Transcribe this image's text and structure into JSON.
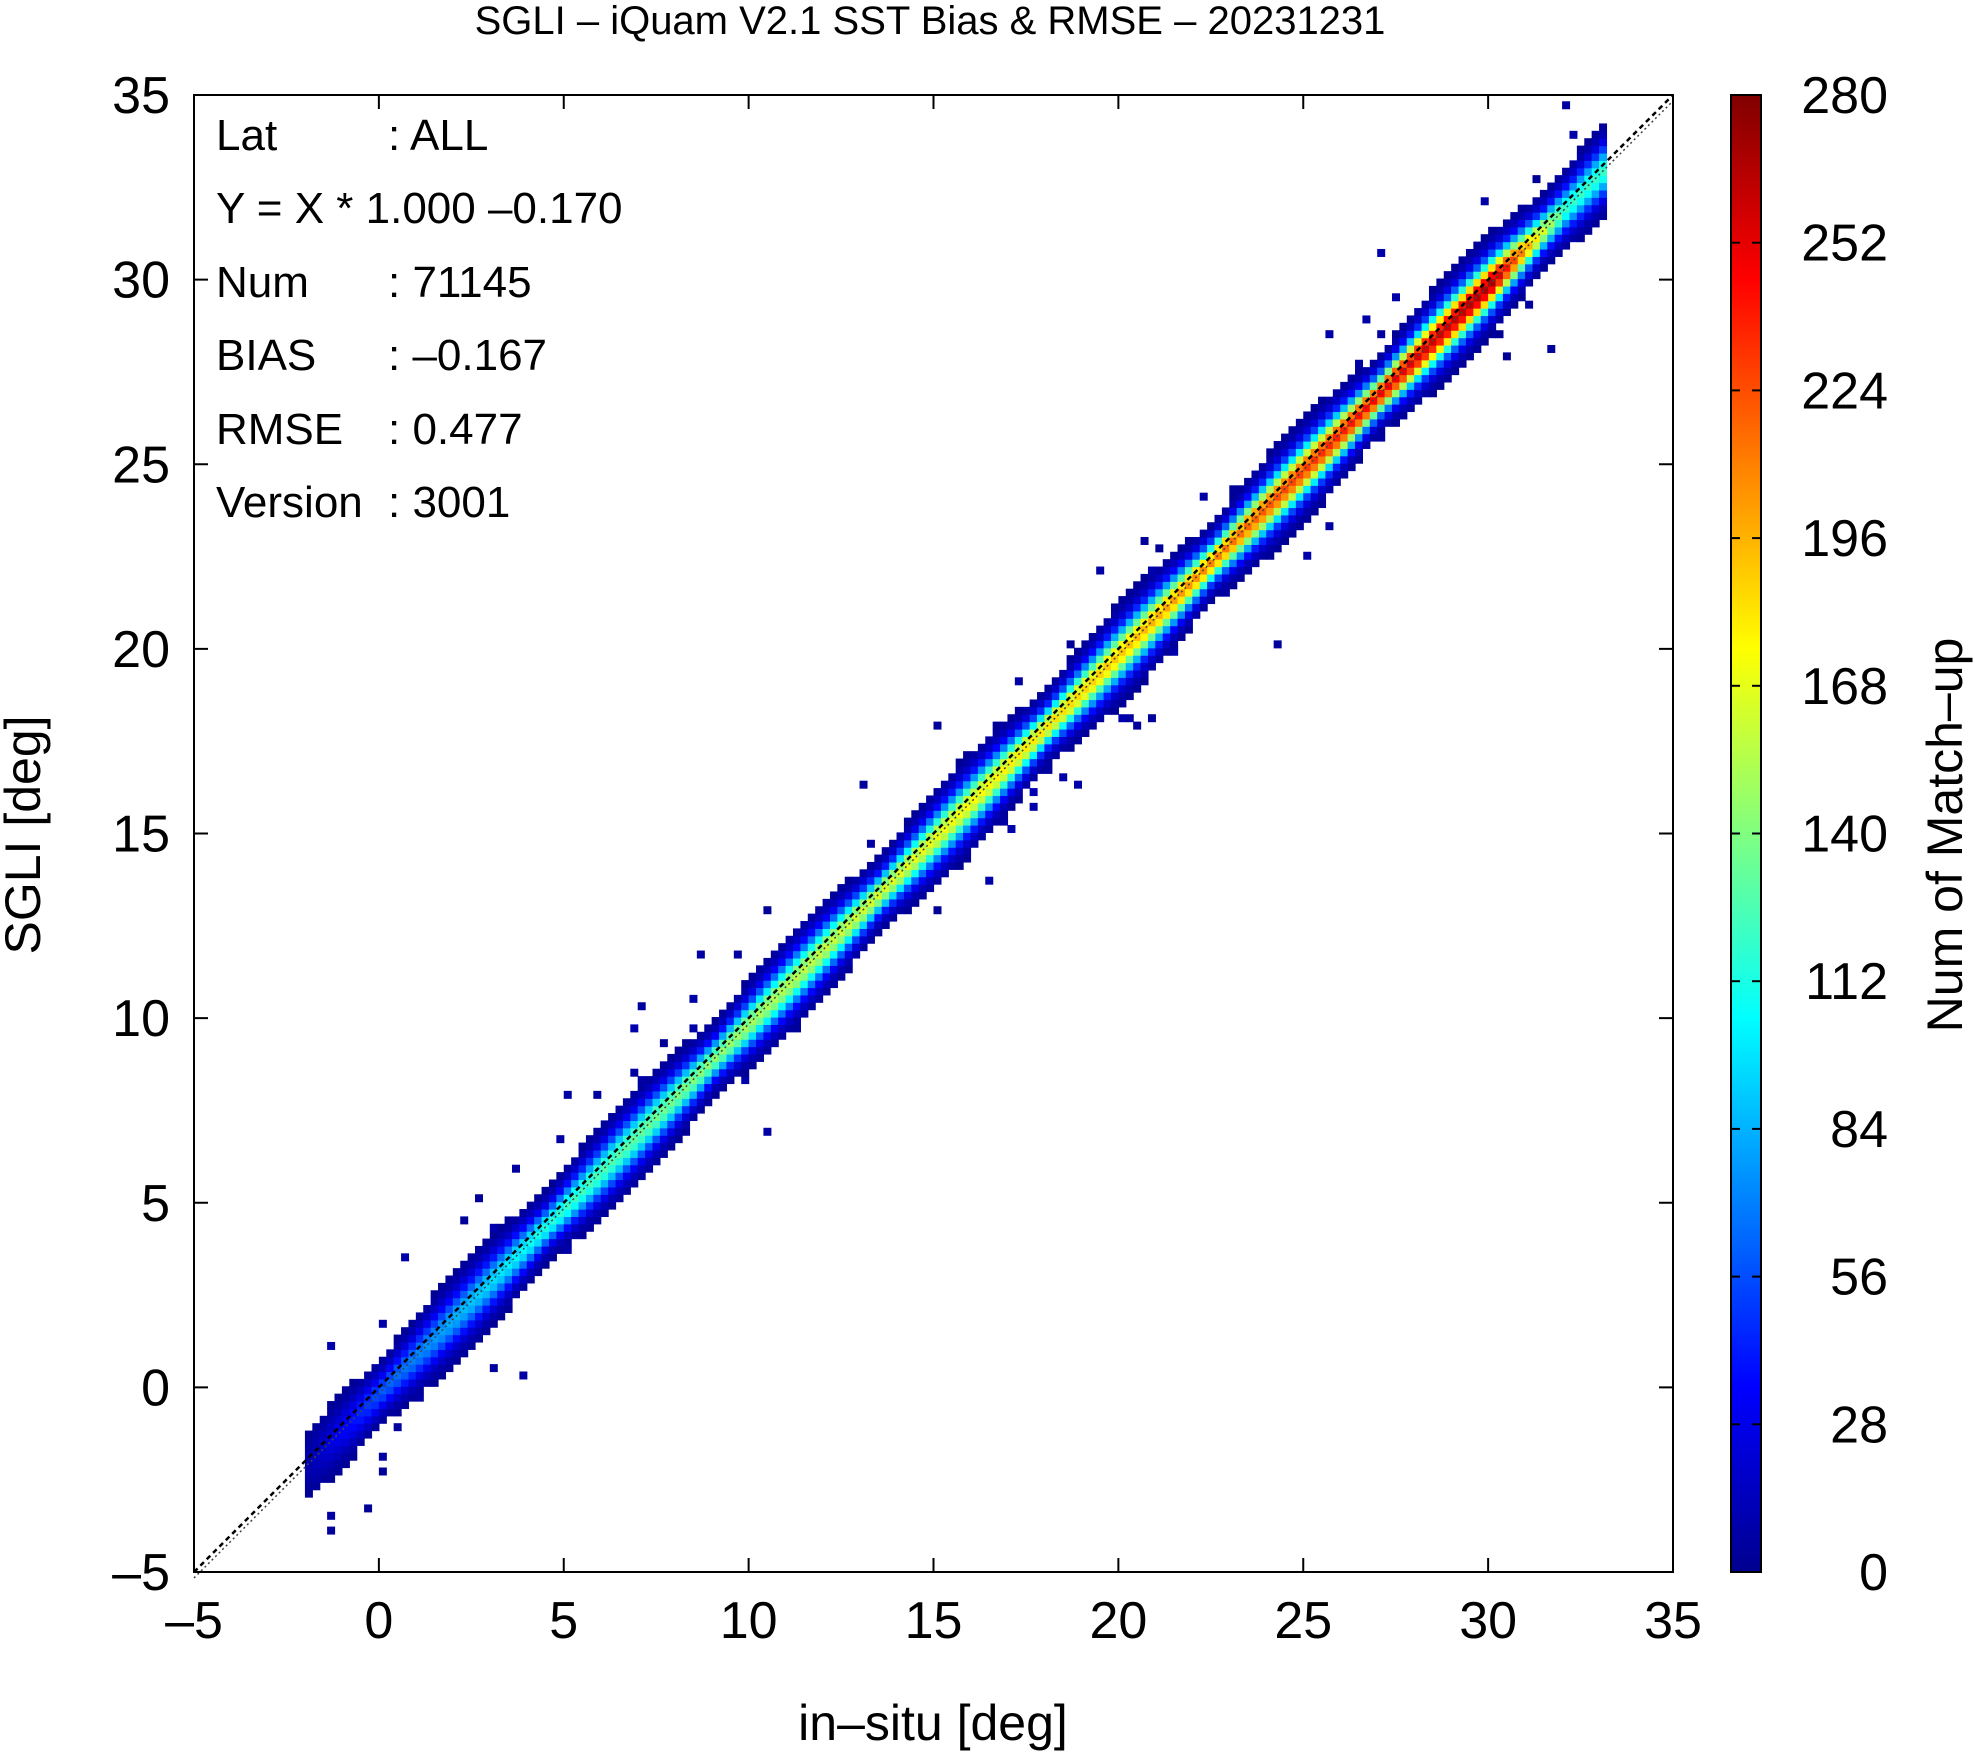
{
  "chart_data": {
    "type": "heatmap",
    "title": "SGLI – iQuam V2.1 SST Bias & RMSE  – 20231231",
    "xlabel": "in–situ [deg]",
    "ylabel": "SGLI [deg]",
    "xlim": [
      -5,
      35
    ],
    "ylim": [
      -5,
      35
    ],
    "xticks": [
      "–5",
      "0",
      "5",
      "10",
      "15",
      "20",
      "25",
      "30",
      "35"
    ],
    "yticks": [
      "–5",
      "0",
      "5",
      "10",
      "15",
      "20",
      "25",
      "30",
      "35"
    ],
    "grid": false,
    "colorbar": {
      "label": "Num of Match–up",
      "min": 0,
      "max": 280,
      "ticks": [
        "0",
        "28",
        "56",
        "84",
        "112",
        "140",
        "168",
        "196",
        "224",
        "252",
        "280"
      ],
      "colormap": [
        "#00008f",
        "#0000ff",
        "#0080ff",
        "#00ffff",
        "#80ff80",
        "#ffff00",
        "#ff8000",
        "#ff0000",
        "#800000"
      ]
    },
    "reference_line": {
      "slope": 1,
      "intercept": 0,
      "style": "dashed"
    },
    "fit_line": {
      "slope": 1.0,
      "intercept": -0.17
    },
    "density_ridge": {
      "x": [
        -2,
        0,
        5,
        10,
        15,
        20,
        25,
        30,
        32
      ],
      "peak_count": [
        10,
        60,
        120,
        150,
        170,
        190,
        230,
        270,
        120
      ]
    },
    "stats": [
      {
        "label": "Lat",
        "value": ": ALL"
      },
      {
        "label": "Y = X * 1.000 –0.170",
        "value": ""
      },
      {
        "label": "Num",
        "value": ": 71145"
      },
      {
        "label": "BIAS",
        "value": ": –0.167"
      },
      {
        "label": "RMSE",
        "value": ": 0.477"
      },
      {
        "label": "Version",
        "value": ": 3001"
      }
    ]
  }
}
